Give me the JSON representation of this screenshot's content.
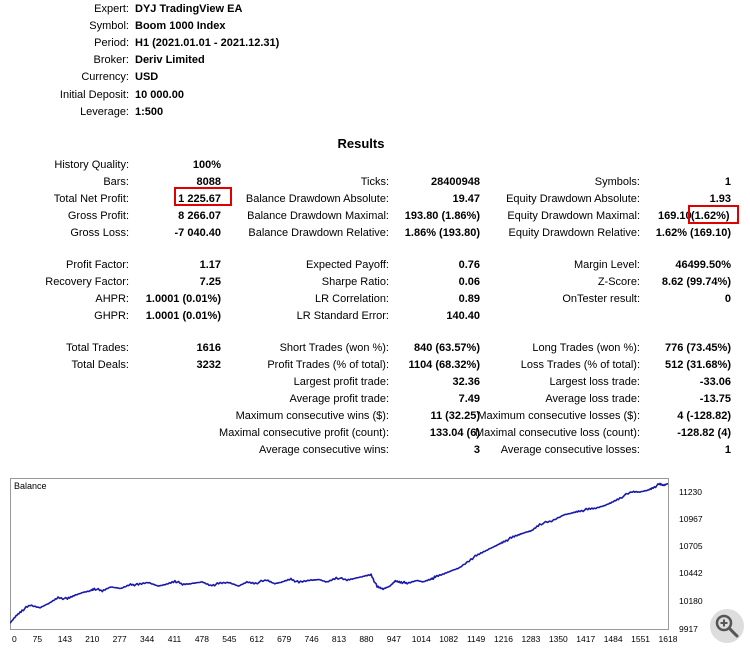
{
  "settings": {
    "rows": [
      {
        "label": "Expert:",
        "value": "DYJ TradingView EA"
      },
      {
        "label": "Symbol:",
        "value": "Boom 1000 Index"
      },
      {
        "label": "Period:",
        "value": "H1 (2021.01.01 - 2021.12.31)"
      },
      {
        "label": "Broker:",
        "value": "Deriv Limited"
      },
      {
        "label": "Currency:",
        "value": "USD"
      },
      {
        "label": "Initial Deposit:",
        "value": "10 000.00"
      },
      {
        "label": "Leverage:",
        "value": "1:500"
      }
    ]
  },
  "results": {
    "title": "Results",
    "col1": [
      {
        "label": "History Quality:",
        "value": "100%"
      },
      {
        "label": "Bars:",
        "value": "8088"
      },
      {
        "label": "Total Net Profit:",
        "value": "1 225.67"
      },
      {
        "label": "Gross Profit:",
        "value": "8 266.07"
      },
      {
        "label": "Gross Loss:",
        "value": "-7 040.40"
      },
      {
        "label": "Profit Factor:",
        "value": "1.17"
      },
      {
        "label": "Recovery Factor:",
        "value": "7.25"
      },
      {
        "label": "AHPR:",
        "value": "1.0001 (0.01%)"
      },
      {
        "label": "GHPR:",
        "value": "1.0001 (0.01%)"
      },
      {
        "label": "Total Trades:",
        "value": "1616"
      },
      {
        "label": "Total Deals:",
        "value": "3232"
      }
    ],
    "col2": [
      {
        "label": "Ticks:",
        "value": "28400948"
      },
      {
        "label": "Balance Drawdown Absolute:",
        "value": "19.47"
      },
      {
        "label": "Balance Drawdown Maximal:",
        "value": "193.80 (1.86%)"
      },
      {
        "label": "Balance Drawdown Relative:",
        "value": "1.86% (193.80)"
      },
      {
        "label": "Expected Payoff:",
        "value": "0.76"
      },
      {
        "label": "Sharpe Ratio:",
        "value": "0.06"
      },
      {
        "label": "LR Correlation:",
        "value": "0.89"
      },
      {
        "label": "LR Standard Error:",
        "value": "140.40"
      },
      {
        "label": "Short Trades (won %):",
        "value": "840 (63.57%)"
      },
      {
        "label": "Profit Trades (% of total):",
        "value": "1104 (68.32%)"
      },
      {
        "label": "Largest profit trade:",
        "value": "32.36"
      },
      {
        "label": "Average profit trade:",
        "value": "7.49"
      },
      {
        "label": "Maximum consecutive wins ($):",
        "value": "11 (32.25)"
      },
      {
        "label": "Maximal consecutive profit (count):",
        "value": "133.04 (6)"
      },
      {
        "label": "Average consecutive wins:",
        "value": "3"
      }
    ],
    "col3": [
      {
        "label": "Symbols:",
        "value": "1"
      },
      {
        "label": "Equity Drawdown Absolute:",
        "value": "1.93"
      },
      {
        "label": "Equity Drawdown Maximal:",
        "value": "169.10",
        "value2": "(1.62%)"
      },
      {
        "label": "Equity Drawdown Relative:",
        "value": "1.62% (169.10)"
      },
      {
        "label": "Margin Level:",
        "value": "46499.50%"
      },
      {
        "label": "Z-Score:",
        "value": "8.62 (99.74%)"
      },
      {
        "label": "OnTester result:",
        "value": "0"
      },
      {
        "label": "Long Trades (won %):",
        "value": "776 (73.45%)"
      },
      {
        "label": "Loss Trades (% of total):",
        "value": "512 (31.68%)"
      },
      {
        "label": "Largest loss trade:",
        "value": "-33.06"
      },
      {
        "label": "Average loss trade:",
        "value": "-13.75"
      },
      {
        "label": "Maximum consecutive losses ($):",
        "value": "4 (-128.82)"
      },
      {
        "label": "Maximal consecutive loss (count):",
        "value": "-128.82 (4)"
      },
      {
        "label": "Average consecutive losses:",
        "value": "1"
      }
    ]
  },
  "colors": {
    "highlight_box": "#e00000",
    "balance_line": "#1a1aa8"
  },
  "icons": {
    "zoom": "zoom-in-icon"
  },
  "chart_data": {
    "type": "line",
    "title": "Balance",
    "xlabel": "",
    "ylabel": "",
    "x_ticks": [
      "0",
      "75",
      "143",
      "210",
      "277",
      "344",
      "411",
      "478",
      "545",
      "612",
      "679",
      "746",
      "813",
      "880",
      "947",
      "1014",
      "1082",
      "1149",
      "1216",
      "1283",
      "1350",
      "1417",
      "1484",
      "1551",
      "1618"
    ],
    "y_ticks": [
      "11230",
      "10967",
      "10705",
      "10442",
      "10180",
      "9917"
    ],
    "xlim": [
      0,
      1640
    ],
    "ylim": [
      9917,
      11300
    ],
    "grid": false,
    "series": [
      {
        "x": [
          0,
          15,
          30,
          50,
          75,
          100,
          120,
          143,
          160,
          180,
          200,
          210,
          230,
          250,
          277,
          300,
          320,
          344,
          370,
          390,
          411,
          430,
          450,
          478,
          500,
          520,
          545,
          570,
          590,
          612,
          640,
          660,
          679,
          700,
          720,
          746,
          770,
          790,
          813,
          840,
          860,
          880,
          900,
          915,
          930,
          947,
          960,
          975,
          990,
          1014,
          1030,
          1050,
          1060,
          1082,
          1100,
          1120,
          1149,
          1170,
          1190,
          1216,
          1230,
          1250,
          1270,
          1283,
          1300,
          1320,
          1350,
          1380,
          1400,
          1417,
          1440,
          1460,
          1484,
          1500,
          1520,
          1551,
          1570,
          1590,
          1600,
          1618,
          1630,
          1640
        ],
        "y": [
          9970,
          10040,
          10090,
          10130,
          10110,
          10160,
          10210,
          10190,
          10220,
          10250,
          10270,
          10290,
          10260,
          10300,
          10290,
          10330,
          10320,
          10340,
          10310,
          10330,
          10360,
          10320,
          10330,
          10350,
          10320,
          10330,
          10340,
          10310,
          10350,
          10340,
          10360,
          10330,
          10350,
          10380,
          10340,
          10360,
          10370,
          10350,
          10390,
          10360,
          10380,
          10400,
          10420,
          10300,
          10280,
          10310,
          10360,
          10350,
          10330,
          10360,
          10350,
          10380,
          10390,
          10420,
          10450,
          10480,
          10560,
          10600,
          10640,
          10690,
          10720,
          10750,
          10780,
          10800,
          10820,
          10880,
          10900,
          10960,
          10980,
          11000,
          11010,
          11020,
          11050,
          11080,
          11120,
          11170,
          11170,
          11190,
          11210,
          11240,
          11230,
          11250
        ]
      }
    ]
  }
}
